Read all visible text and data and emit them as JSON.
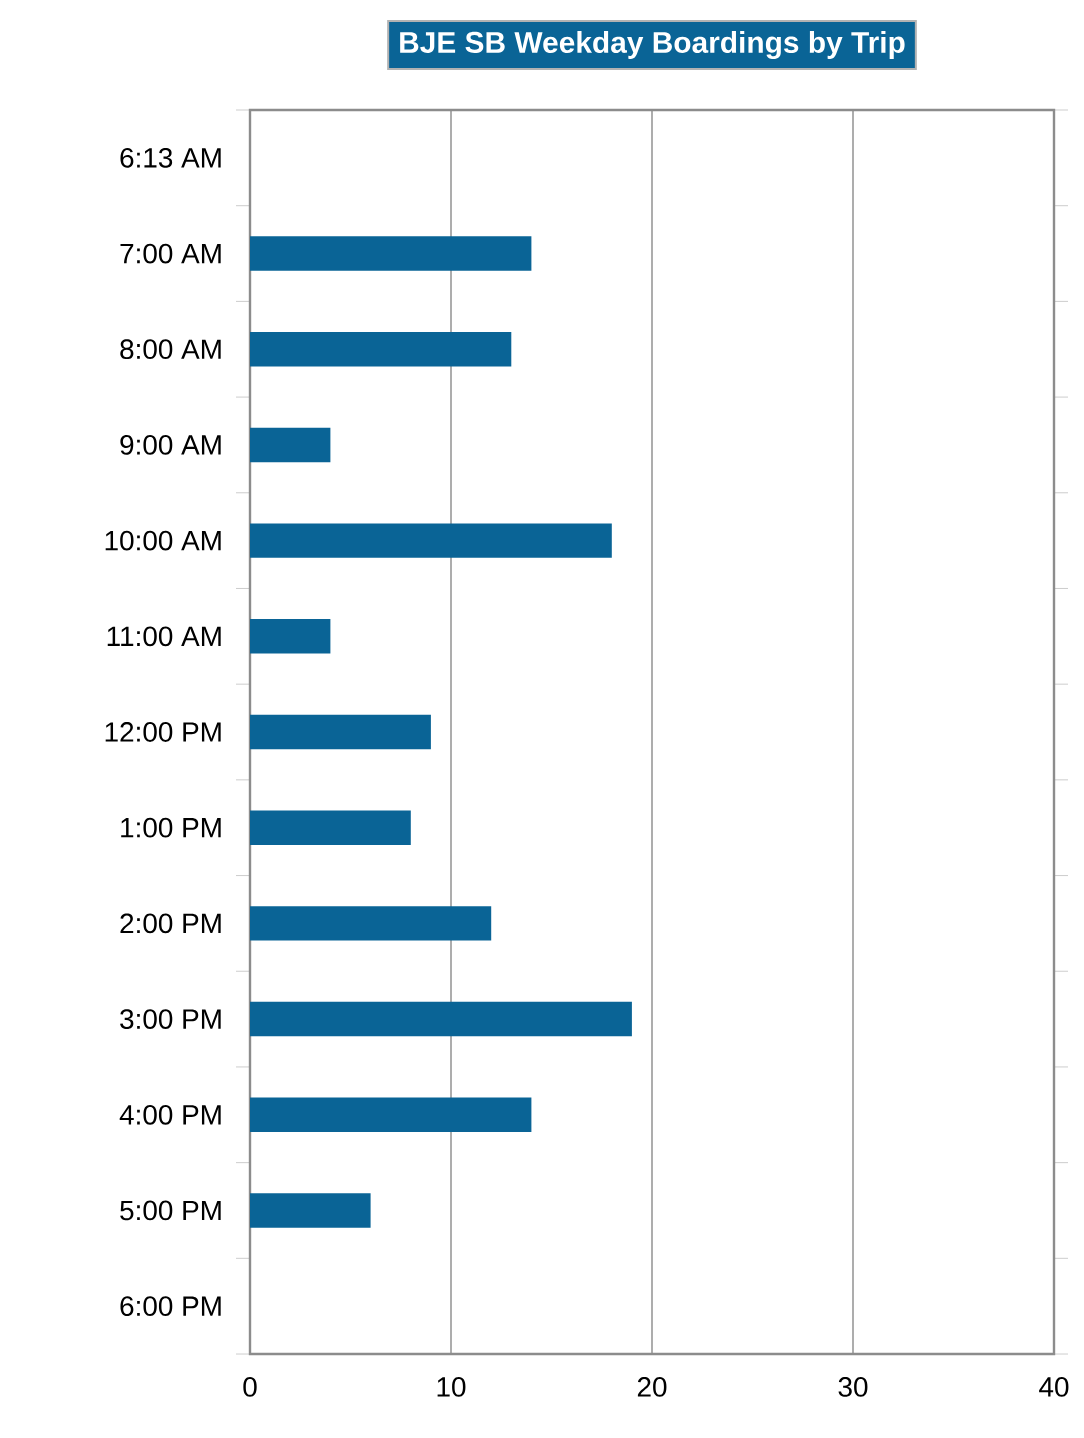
{
  "chart_data": {
    "type": "bar",
    "orientation": "horizontal",
    "title": "BJE SB Weekday Boardings by Trip",
    "categories": [
      "6:13 AM",
      "7:00 AM",
      "8:00 AM",
      "9:00 AM",
      "10:00 AM",
      "11:00 AM",
      "12:00 PM",
      "1:00 PM",
      "2:00 PM",
      "3:00 PM",
      "4:00 PM",
      "5:00 PM",
      "6:00 PM"
    ],
    "values": [
      0,
      14,
      13,
      4,
      18,
      4,
      9,
      8,
      12,
      19,
      14,
      6,
      0
    ],
    "color": "#0a6496",
    "xlim": [
      0,
      40
    ],
    "xticks": [
      0,
      10,
      20,
      30,
      40
    ],
    "grid": "x"
  }
}
